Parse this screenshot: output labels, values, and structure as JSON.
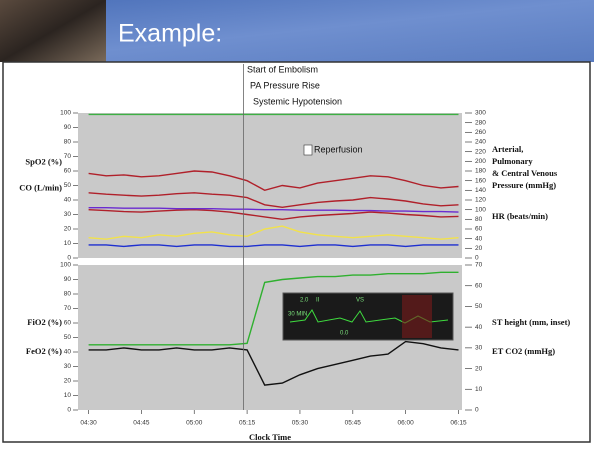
{
  "header": {
    "title": "Example:"
  },
  "chart_data": [
    {
      "type": "line",
      "annotations": [
        "Start of Embolism",
        "PA Pressure Rise",
        "Systemic Hypotension",
        "Reperfusion"
      ],
      "ylabels": [
        "SpO2 (%)",
        "CO (L/min)"
      ],
      "y2labels": [
        [
          "Arterial,",
          "Pulmonary",
          "& Central Venous",
          "Pressure (mmHg)"
        ],
        [
          "HR (beats/min)"
        ]
      ],
      "background": "#c9c9c9",
      "event_x": 314,
      "xlim": [
        267,
        376
      ],
      "x": [
        270,
        275,
        280,
        285,
        290,
        295,
        300,
        305,
        310,
        315,
        320,
        325,
        330,
        335,
        340,
        345,
        350,
        355,
        360,
        365,
        370,
        375
      ],
      "ylim": [
        0,
        100
      ],
      "yticks": [
        0,
        10,
        20,
        30,
        40,
        50,
        60,
        70,
        80,
        90,
        100
      ],
      "y2lim": [
        0,
        300
      ],
      "y2ticks": [
        0,
        20,
        40,
        60,
        80,
        100,
        120,
        140,
        160,
        180,
        200,
        220,
        240,
        260,
        280,
        300
      ],
      "series": [
        {
          "color": "#3cb043",
          "values": [
            99,
            99,
            99,
            99,
            99,
            99,
            99,
            99,
            99,
            99,
            99,
            99,
            99,
            99,
            99,
            99,
            99,
            99,
            99,
            99,
            99,
            99
          ]
        },
        {
          "color": "#b0202a",
          "axis": "y2",
          "values": [
            175,
            170,
            172,
            168,
            170,
            175,
            180,
            178,
            170,
            160,
            140,
            150,
            145,
            155,
            160,
            165,
            170,
            168,
            160,
            150,
            145,
            148
          ]
        },
        {
          "color": "#b0202a",
          "axis": "y2",
          "values": [
            135,
            132,
            130,
            128,
            130,
            133,
            135,
            132,
            130,
            125,
            110,
            105,
            110,
            115,
            118,
            120,
            125,
            122,
            118,
            112,
            108,
            110
          ]
        },
        {
          "color": "#b0202a",
          "axis": "y2",
          "values": [
            100,
            98,
            96,
            95,
            97,
            99,
            100,
            98,
            95,
            90,
            85,
            80,
            85,
            88,
            90,
            92,
            95,
            93,
            90,
            88,
            85,
            86
          ]
        },
        {
          "color": "#6a2bd0",
          "axis": "y2",
          "values": [
            104,
            104,
            103,
            103,
            103,
            102,
            102,
            102,
            101,
            101,
            100,
            100,
            99,
            99,
            99,
            98,
            98,
            97,
            97,
            96,
            96,
            95
          ]
        },
        {
          "color": "#f2e24a",
          "values": [
            14,
            13,
            15,
            14,
            16,
            15,
            17,
            18,
            16,
            15,
            20,
            22,
            18,
            16,
            15,
            14,
            15,
            16,
            15,
            14,
            13,
            14
          ]
        },
        {
          "color": "#1d2fd0",
          "values": [
            9,
            9,
            8,
            9,
            9,
            8,
            9,
            9,
            8,
            8,
            9,
            9,
            8,
            9,
            9,
            8,
            9,
            9,
            8,
            9,
            9,
            9
          ]
        }
      ]
    },
    {
      "type": "line",
      "ylabels": [
        "FiO2 (%)",
        "FeO2 (%)"
      ],
      "y2labels": [
        [
          "ST height (mm, inset)"
        ],
        [
          "ET CO2 (mmHg)"
        ]
      ],
      "inset_labels": [
        "2.0",
        "II",
        "VS",
        "30 MIN",
        "0.0"
      ],
      "background": "#c9c9c9",
      "event_x": 314,
      "xlim": [
        267,
        376
      ],
      "x": [
        270,
        275,
        280,
        285,
        290,
        295,
        300,
        305,
        310,
        315,
        320,
        325,
        330,
        335,
        340,
        345,
        350,
        355,
        360,
        365,
        370,
        375
      ],
      "xticks": [
        {
          "value": 270,
          "label": "04:30"
        },
        {
          "value": 285,
          "label": "04:45"
        },
        {
          "value": 300,
          "label": "05:00"
        },
        {
          "value": 315,
          "label": "05:15"
        },
        {
          "value": 330,
          "label": "05:30"
        },
        {
          "value": 345,
          "label": "05:45"
        },
        {
          "value": 360,
          "label": "06:00"
        },
        {
          "value": 375,
          "label": "06:15"
        }
      ],
      "xlabel": "Clock Time",
      "ylim": [
        0,
        100
      ],
      "yticks": [
        0,
        10,
        20,
        30,
        40,
        50,
        60,
        70,
        80,
        90,
        100
      ],
      "y2lim": [
        0,
        70
      ],
      "y2ticks": [
        0,
        10,
        20,
        30,
        40,
        50,
        60,
        70
      ],
      "series": [
        {
          "color": "#2fb02f",
          "values": [
            45,
            45,
            45,
            45,
            45,
            45,
            45,
            45,
            45,
            46,
            88,
            90,
            91,
            92,
            92,
            93,
            93,
            94,
            94,
            94,
            95,
            95
          ]
        },
        {
          "color": "#111111",
          "axis": "y2",
          "values": [
            29,
            29,
            30,
            29,
            29,
            30,
            29,
            29,
            30,
            29,
            12,
            13,
            17,
            20,
            22,
            24,
            26,
            27,
            33,
            32,
            30,
            29
          ]
        }
      ]
    }
  ]
}
